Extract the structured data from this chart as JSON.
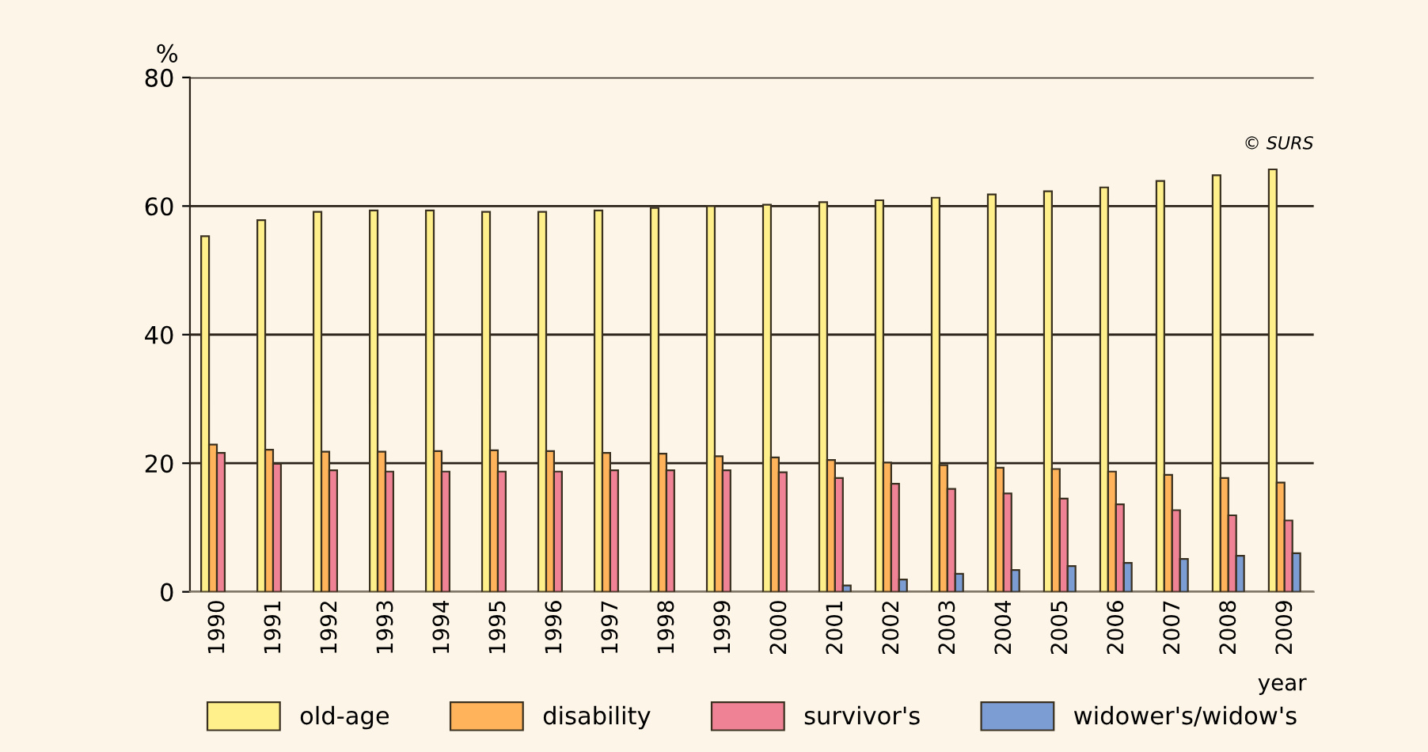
{
  "chart_data": {
    "type": "bar",
    "ylabel": "%",
    "xlabel": "year",
    "categories": [
      "1990",
      "1991",
      "1992",
      "1993",
      "1994",
      "1995",
      "1996",
      "1997",
      "1998",
      "1999",
      "2000",
      "2001",
      "2002",
      "2003",
      "2004",
      "2005",
      "2006",
      "2007",
      "2008",
      "2009"
    ],
    "series": [
      {
        "name": "old-age",
        "color": "#fff08c",
        "values": [
          55.3,
          57.8,
          59.1,
          59.3,
          59.3,
          59.1,
          59.1,
          59.3,
          59.7,
          60.0,
          60.2,
          60.6,
          60.9,
          61.3,
          61.8,
          62.3,
          62.9,
          63.9,
          64.8,
          65.7
        ]
      },
      {
        "name": "disability",
        "color": "#ffb35a",
        "values": [
          22.9,
          22.1,
          21.8,
          21.8,
          21.9,
          22.0,
          21.9,
          21.6,
          21.5,
          21.1,
          20.9,
          20.5,
          20.1,
          19.7,
          19.3,
          19.1,
          18.7,
          18.2,
          17.7,
          17.0
        ]
      },
      {
        "name": "survivor's",
        "color": "#f08296",
        "values": [
          21.6,
          19.9,
          18.9,
          18.7,
          18.7,
          18.7,
          18.7,
          18.9,
          18.9,
          18.9,
          18.6,
          17.7,
          16.8,
          16.0,
          15.3,
          14.5,
          13.6,
          12.7,
          11.9,
          11.1
        ]
      },
      {
        "name": "widower's/widow's",
        "color": "#7c9cd4",
        "values": [
          null,
          null,
          null,
          null,
          null,
          null,
          null,
          null,
          null,
          null,
          null,
          1.0,
          1.9,
          2.8,
          3.4,
          4.0,
          4.5,
          5.1,
          5.6,
          6.0
        ]
      }
    ],
    "ylim": [
      0,
      80
    ],
    "yticks": [
      0,
      20,
      40,
      60,
      80
    ],
    "grid": "y",
    "legend": "bottom",
    "annotations": [
      "© SURS"
    ]
  }
}
